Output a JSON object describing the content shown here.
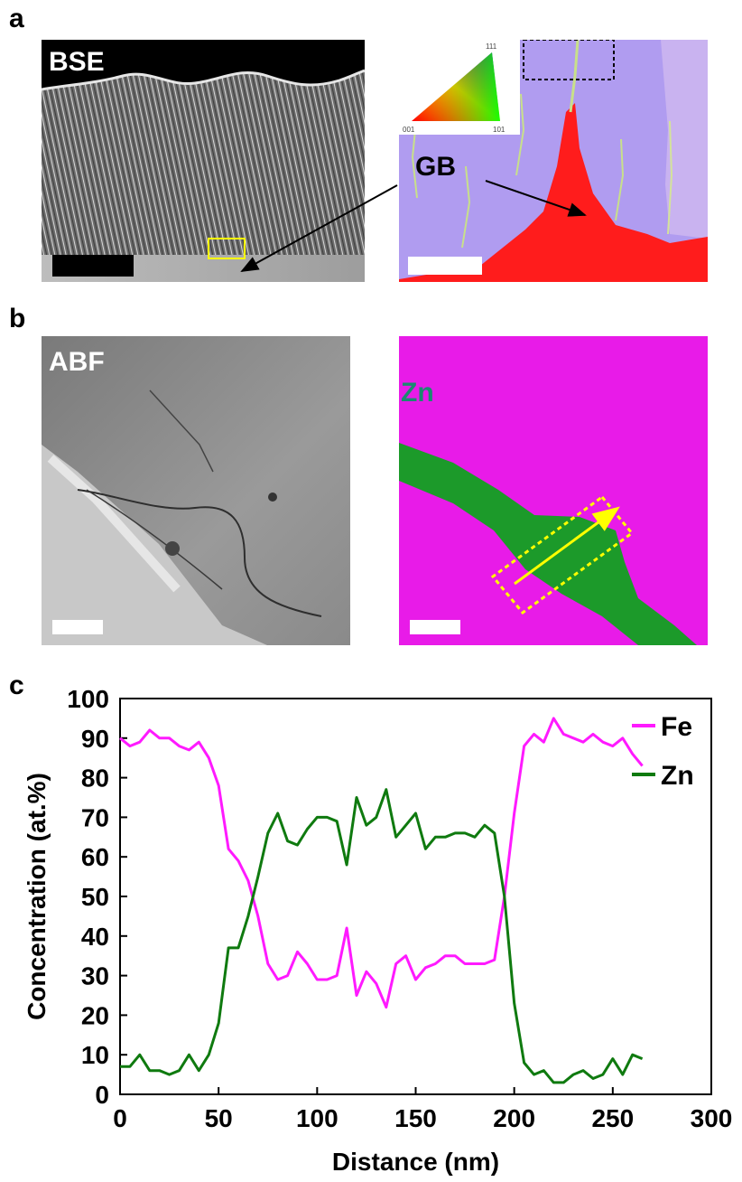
{
  "panel_labels": {
    "a": "a",
    "b": "b",
    "c": "c"
  },
  "panel_a": {
    "left_label": "BSE",
    "right_label": "GB",
    "ipf_key": {
      "top": "111",
      "bottom_left": "001",
      "bottom_right": "101"
    }
  },
  "panel_b": {
    "left_label": "ABF",
    "right_label": "Zn"
  },
  "colors": {
    "fe": "#ff1aff",
    "zn": "#0f7a0f",
    "ebsd_purple": "#b09cf0",
    "ebsd_red": "#ff1c1c",
    "map_magenta": "#e81be8",
    "map_green": "#1c9a2a",
    "highlight_yellow": "#ffff00"
  },
  "chart_data": {
    "type": "line",
    "xlabel": "Distance (nm)",
    "ylabel": "Concentration (at.%)",
    "xlim": [
      0,
      300
    ],
    "ylim": [
      0,
      100
    ],
    "xticks": [
      "0",
      "50",
      "100",
      "150",
      "200",
      "250",
      "300"
    ],
    "yticks": [
      "0",
      "10",
      "20",
      "30",
      "40",
      "50",
      "60",
      "70",
      "80",
      "90",
      "100"
    ],
    "legend_position": "top-right",
    "series": [
      {
        "name": "Fe",
        "x": [
          0,
          5,
          10,
          15,
          20,
          25,
          30,
          35,
          40,
          45,
          50,
          55,
          60,
          65,
          70,
          75,
          80,
          85,
          90,
          95,
          100,
          105,
          110,
          115,
          120,
          125,
          130,
          135,
          140,
          145,
          150,
          155,
          160,
          165,
          170,
          175,
          180,
          185,
          190,
          195,
          200,
          205,
          210,
          215,
          220,
          225,
          230,
          235,
          240,
          245,
          250,
          255,
          260,
          265
        ],
        "values": [
          90,
          88,
          89,
          92,
          90,
          90,
          88,
          87,
          89,
          85,
          78,
          62,
          59,
          54,
          45,
          33,
          29,
          30,
          36,
          33,
          29,
          29,
          30,
          42,
          25,
          31,
          28,
          22,
          33,
          35,
          29,
          32,
          33,
          35,
          35,
          33,
          33,
          33,
          34,
          50,
          71,
          88,
          91,
          89,
          95,
          91,
          90,
          89,
          91,
          89,
          88,
          90,
          86,
          83
        ]
      },
      {
        "name": "Zn",
        "x": [
          0,
          5,
          10,
          15,
          20,
          25,
          30,
          35,
          40,
          45,
          50,
          55,
          60,
          65,
          70,
          75,
          80,
          85,
          90,
          95,
          100,
          105,
          110,
          115,
          120,
          125,
          130,
          135,
          140,
          145,
          150,
          155,
          160,
          165,
          170,
          175,
          180,
          185,
          190,
          195,
          200,
          205,
          210,
          215,
          220,
          225,
          230,
          235,
          240,
          245,
          250,
          255,
          260,
          265
        ],
        "values": [
          7,
          7,
          10,
          6,
          6,
          5,
          6,
          10,
          6,
          10,
          18,
          37,
          37,
          45,
          55,
          66,
          71,
          64,
          63,
          67,
          70,
          70,
          69,
          58,
          75,
          68,
          70,
          77,
          65,
          68,
          71,
          62,
          65,
          65,
          66,
          66,
          65,
          68,
          66,
          50,
          23,
          8,
          5,
          6,
          3,
          3,
          5,
          6,
          4,
          5,
          9,
          5,
          10,
          9
        ]
      }
    ]
  }
}
